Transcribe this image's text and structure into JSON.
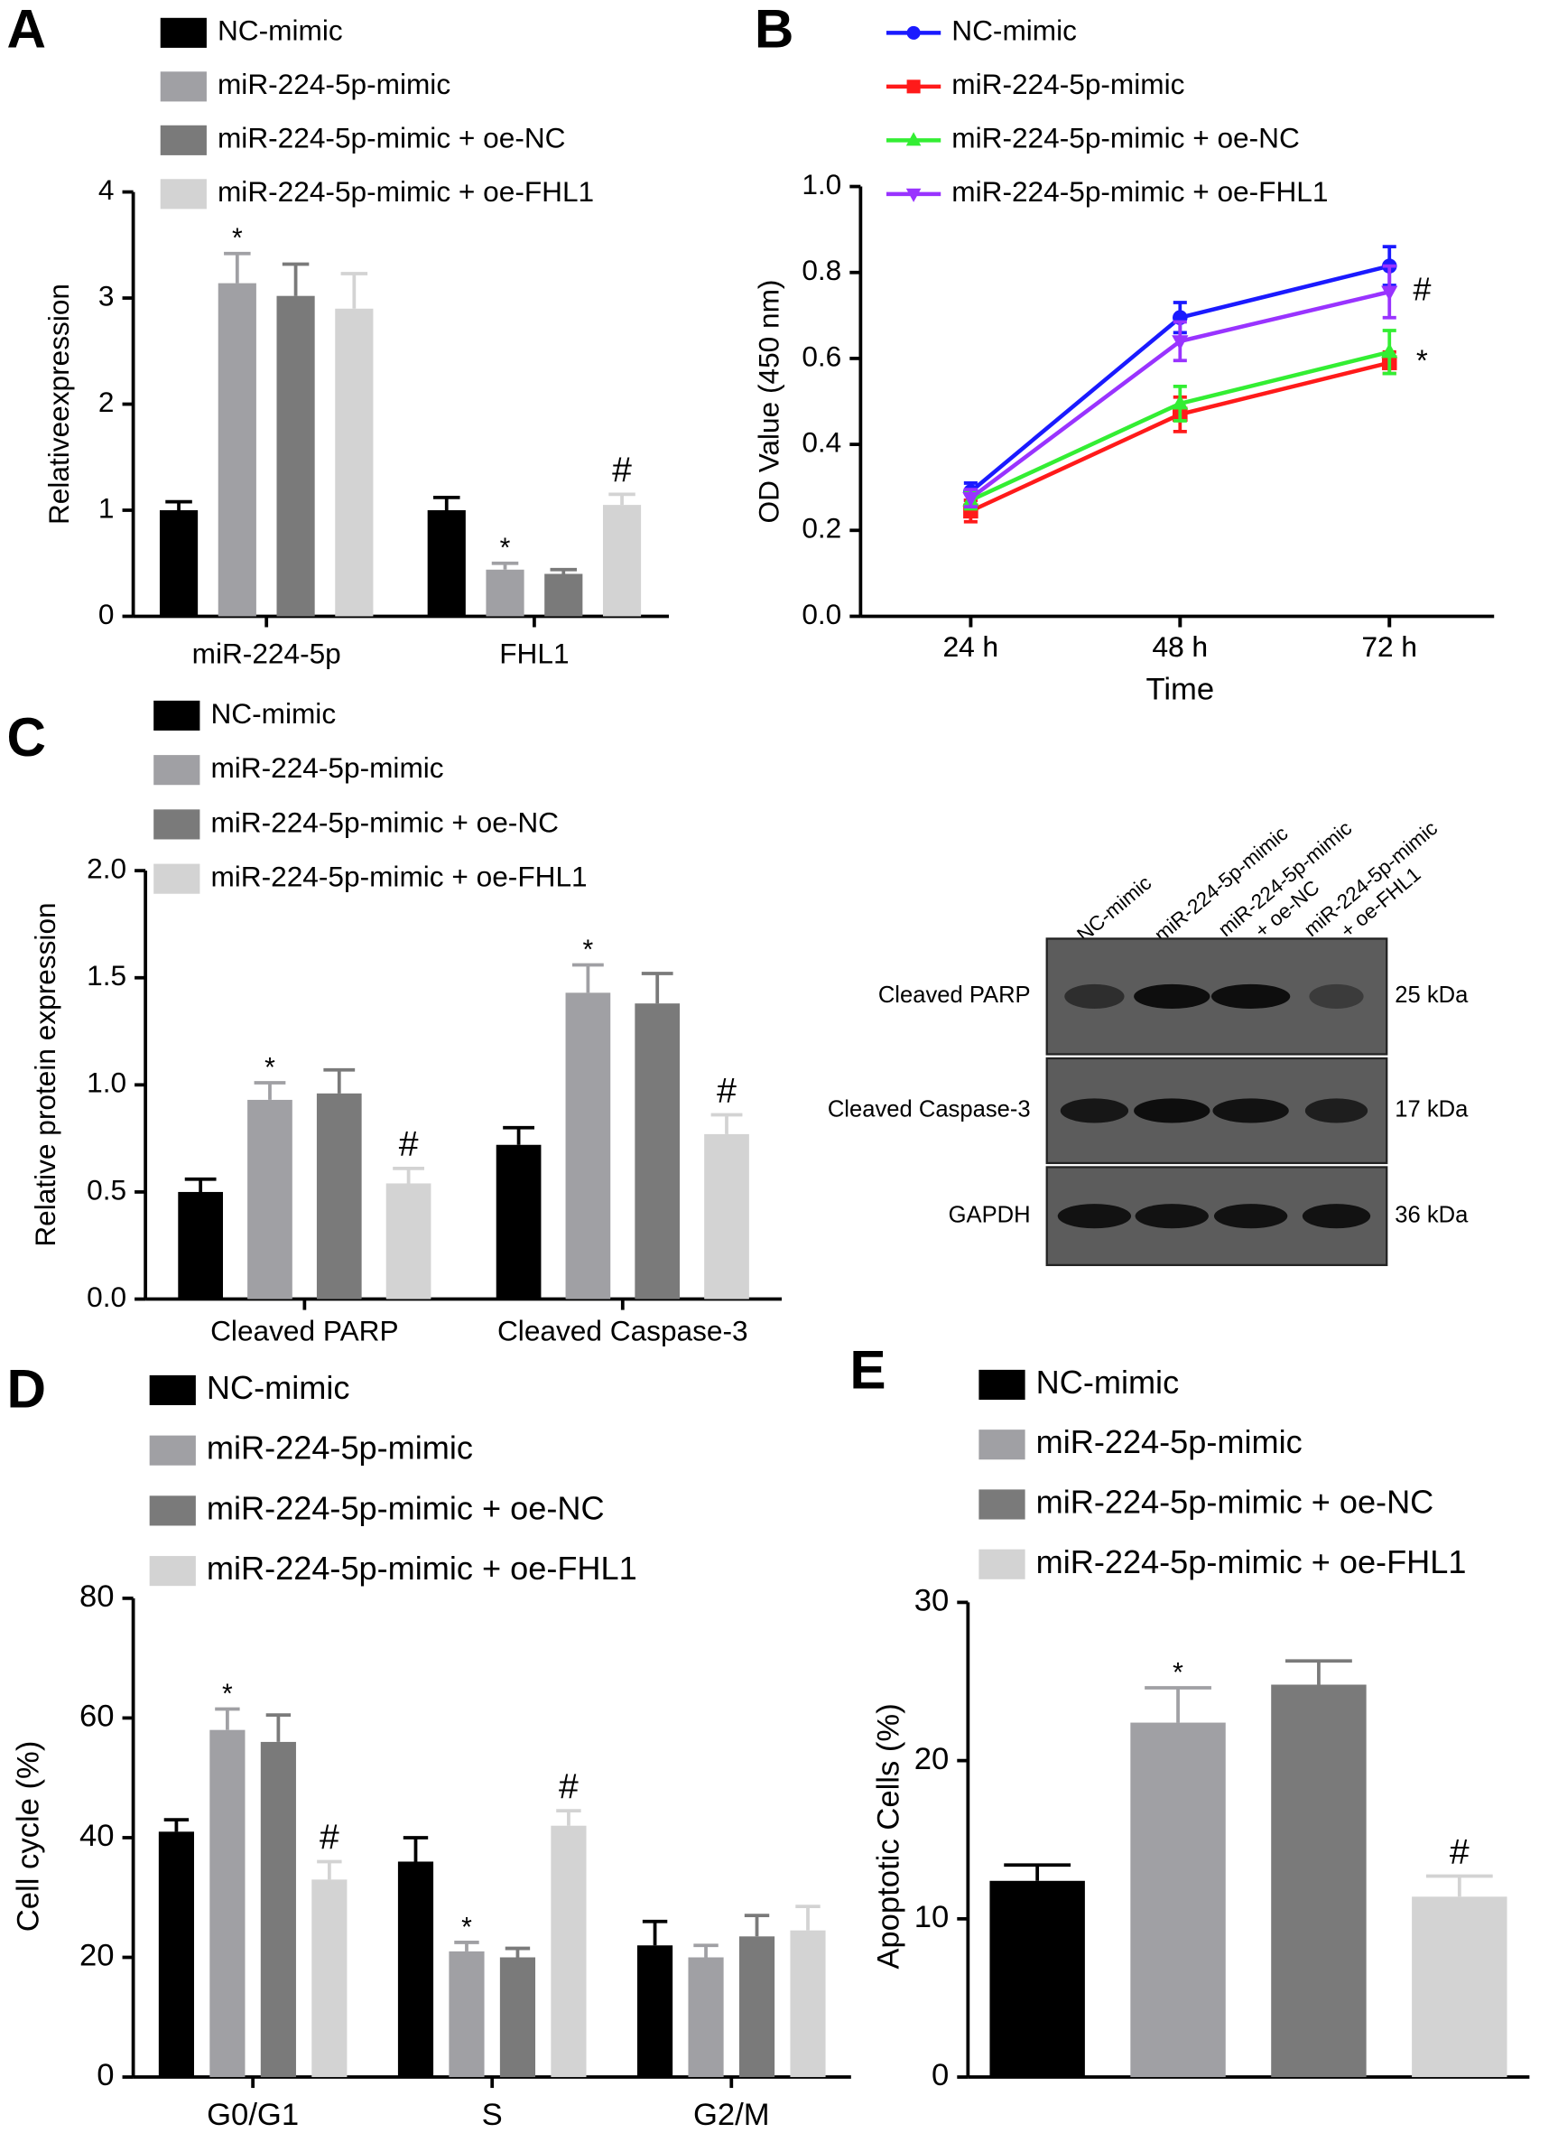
{
  "chart_data": [
    {
      "type": "bar",
      "panel": "A",
      "ylabel": "Relativeexpression",
      "categories": [
        "miR-224-5p",
        "FHL1"
      ],
      "ylim": [
        0,
        4
      ],
      "yticks": [
        0,
        1,
        2,
        3,
        4
      ],
      "series": [
        {
          "name": "NC-mimic",
          "color": "#000000",
          "values": [
            1.0,
            1.0
          ],
          "errors": [
            0.08,
            0.12
          ],
          "annotations": [
            null,
            null
          ]
        },
        {
          "name": "miR-224-5p-mimic",
          "color": "#a0a0a4",
          "values": [
            3.14,
            0.44
          ],
          "errors": [
            0.28,
            0.06
          ],
          "annotations": [
            "*",
            "*"
          ]
        },
        {
          "name": "miR-224-5p-mimic + oe-NC",
          "color": "#7a7a7a",
          "values": [
            3.02,
            0.4
          ],
          "errors": [
            0.3,
            0.04
          ],
          "annotations": [
            null,
            null
          ]
        },
        {
          "name": "miR-224-5p-mimic + oe-FHL1",
          "color": "#d3d3d3",
          "values": [
            2.9,
            1.05
          ],
          "errors": [
            0.33,
            0.1
          ],
          "annotations": [
            null,
            "#"
          ]
        }
      ]
    },
    {
      "type": "line",
      "panel": "B",
      "ylabel": "OD Value (450 nm)",
      "xlabel": "Time",
      "categories": [
        "24 h",
        "48 h",
        "72 h"
      ],
      "ylim": [
        0,
        1
      ],
      "yticks": [
        {
          "value": 0,
          "label": "0.0"
        },
        0.2,
        0.4,
        0.6,
        0.8,
        {
          "value": 1,
          "label": "1.0"
        }
      ],
      "series": [
        {
          "name": "NC-mimic",
          "color": "#1a1aff",
          "marker": "circle",
          "values": [
            0.29,
            0.695,
            0.815
          ],
          "errors": [
            0.02,
            0.035,
            0.045
          ],
          "annotations": [
            null,
            null,
            null
          ]
        },
        {
          "name": "miR-224-5p-mimic",
          "color": "#ff1a1a",
          "marker": "square",
          "values": [
            0.245,
            0.47,
            0.59
          ],
          "errors": [
            0.025,
            0.04,
            0.025
          ],
          "annotations": [
            null,
            null,
            "*"
          ]
        },
        {
          "name": "miR-224-5p-mimic + oe-NC",
          "color": "#33ee33",
          "marker": "triangle",
          "values": [
            0.27,
            0.495,
            0.615
          ],
          "errors": [
            0.02,
            0.04,
            0.05
          ],
          "annotations": [
            null,
            null,
            null
          ]
        },
        {
          "name": "miR-224-5p-mimic + oe-FHL1",
          "color": "#9933ff",
          "marker": "triangle-down",
          "values": [
            0.275,
            0.64,
            0.755
          ],
          "errors": [
            0.02,
            0.045,
            0.06
          ],
          "annotations": [
            null,
            null,
            "#"
          ]
        }
      ]
    },
    {
      "type": "bar",
      "panel": "C",
      "ylabel": "Relative protein expression",
      "categories": [
        "Cleaved PARP",
        "Cleaved Caspase-3"
      ],
      "ylim": [
        0,
        2
      ],
      "yticks": [
        {
          "value": 0,
          "label": "0.0"
        },
        0.5,
        {
          "value": 1,
          "label": "1.0"
        },
        1.5,
        {
          "value": 2,
          "label": "2.0"
        }
      ],
      "series": [
        {
          "name": "NC-mimic",
          "color": "#000000",
          "values": [
            0.5,
            0.72
          ],
          "errors": [
            0.06,
            0.08
          ],
          "annotations": [
            null,
            null
          ]
        },
        {
          "name": "miR-224-5p-mimic",
          "color": "#a0a0a4",
          "values": [
            0.93,
            1.43
          ],
          "errors": [
            0.08,
            0.13
          ],
          "annotations": [
            "*",
            "*"
          ]
        },
        {
          "name": "miR-224-5p-mimic + oe-NC",
          "color": "#7a7a7a",
          "values": [
            0.96,
            1.38
          ],
          "errors": [
            0.11,
            0.14
          ],
          "annotations": [
            null,
            null
          ]
        },
        {
          "name": "miR-224-5p-mimic + oe-FHL1",
          "color": "#d3d3d3",
          "values": [
            0.54,
            0.77
          ],
          "errors": [
            0.07,
            0.09
          ],
          "annotations": [
            "#",
            "#"
          ]
        }
      ]
    },
    {
      "type": "bar",
      "panel": "D",
      "ylabel": "Cell cycle (%)",
      "categories": [
        "G0/G1",
        "S",
        "G2/M"
      ],
      "ylim": [
        0,
        80
      ],
      "yticks": [
        0,
        20,
        40,
        60,
        80
      ],
      "series": [
        {
          "name": "NC-mimic",
          "color": "#000000",
          "values": [
            41,
            36,
            22
          ],
          "errors": [
            2,
            4,
            4
          ],
          "annotations": [
            null,
            null,
            null
          ]
        },
        {
          "name": "miR-224-5p-mimic",
          "color": "#a0a0a4",
          "values": [
            58,
            21,
            20
          ],
          "errors": [
            3.5,
            1.5,
            2
          ],
          "annotations": [
            "*",
            "*",
            null
          ]
        },
        {
          "name": "miR-224-5p-mimic + oe-NC",
          "color": "#7a7a7a",
          "values": [
            56,
            20,
            23.5
          ],
          "errors": [
            4.5,
            1.5,
            3.5
          ],
          "annotations": [
            null,
            null,
            null
          ]
        },
        {
          "name": "miR-224-5p-mimic + oe-FHL1",
          "color": "#d3d3d3",
          "values": [
            33,
            42,
            24.5
          ],
          "errors": [
            3,
            2.5,
            4
          ],
          "annotations": [
            "#",
            "#",
            null
          ]
        }
      ]
    },
    {
      "type": "bar",
      "panel": "E",
      "ylabel": "Apoptotic Cells (%)",
      "categories": [
        "NC-mimic",
        "miR-224-5p-mimic",
        "miR-224-5p-mimic + oe-NC",
        "miR-224-5p-mimic + oe-FHL1"
      ],
      "colors": [
        "#000000",
        "#a0a0a4",
        "#7a7a7a",
        "#d3d3d3"
      ],
      "values": [
        12.4,
        22.4,
        24.8,
        11.4
      ],
      "errors": [
        1.0,
        2.2,
        1.5,
        1.3
      ],
      "annotations": [
        null,
        "*",
        null,
        "#"
      ],
      "ylim": [
        0,
        30
      ],
      "yticks": [
        0,
        10,
        20,
        30
      ]
    }
  ],
  "blot": {
    "lanes": [
      [
        "NC-mimic"
      ],
      [
        "miR-224-5p-mimic"
      ],
      [
        "miR-224-5p-mimic",
        "+ oe-NC"
      ],
      [
        "miR-224-5p-mimic",
        "+ oe-FHL1"
      ]
    ],
    "rows": [
      {
        "label": "Cleaved PARP",
        "size": "25 kDa"
      },
      {
        "label": "Cleaved Caspase-3",
        "size": "17 kDa"
      },
      {
        "label": "GAPDH",
        "size": "36 kDa"
      }
    ]
  }
}
